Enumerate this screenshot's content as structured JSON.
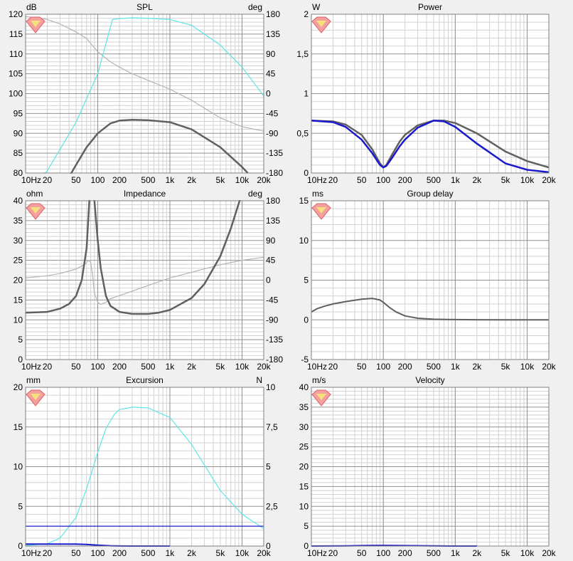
{
  "colors": {
    "dark": "#606060",
    "light": "#b4b4b4",
    "cyan": "#5ee6e6",
    "blue": "#1a1acc",
    "grid_major": "#909090",
    "grid_minor": "#d2d2d2"
  },
  "x_ticks": [
    {
      "v": 10,
      "l": "10Hz"
    },
    {
      "v": 20,
      "l": "20"
    },
    {
      "v": 50,
      "l": "50"
    },
    {
      "v": 100,
      "l": "100"
    },
    {
      "v": 200,
      "l": "200"
    },
    {
      "v": 500,
      "l": "500"
    },
    {
      "v": 1000,
      "l": "1k"
    },
    {
      "v": 2000,
      "l": "2k"
    },
    {
      "v": 5000,
      "l": "5k"
    },
    {
      "v": 10000,
      "l": "10k"
    },
    {
      "v": 20000,
      "l": "20k"
    }
  ],
  "chart_data": [
    {
      "type": "line",
      "title": "SPL",
      "xscale": "log",
      "xlim": [
        10,
        20000
      ],
      "ylabel": "dB",
      "ylim": [
        80,
        120
      ],
      "yticks": [
        {
          "v": 80,
          "l": "80"
        },
        {
          "v": 85,
          "l": "85"
        },
        {
          "v": 90,
          "l": "90"
        },
        {
          "v": 95,
          "l": "95"
        },
        {
          "v": 100,
          "l": "100"
        },
        {
          "v": 105,
          "l": "105"
        },
        {
          "v": 110,
          "l": "110"
        },
        {
          "v": 115,
          "l": "115"
        },
        {
          "v": 120,
          "l": "120"
        }
      ],
      "y2label": "deg",
      "y2lim": [
        -180,
        180
      ],
      "y2ticks": [
        {
          "v": -180,
          "l": "-180"
        },
        {
          "v": -135,
          "l": "-135"
        },
        {
          "v": -90,
          "l": "-90"
        },
        {
          "v": -45,
          "l": "-45"
        },
        {
          "v": 0,
          "l": "0"
        },
        {
          "v": 45,
          "l": "45"
        },
        {
          "v": 90,
          "l": "90"
        },
        {
          "v": 135,
          "l": "135"
        },
        {
          "v": 180,
          "l": "180"
        }
      ],
      "series": [
        {
          "color": "light",
          "axis": "y2",
          "x": [
            10,
            20,
            30,
            50,
            70,
            100,
            150,
            200,
            300,
            500,
            1000,
            2000,
            5000,
            10000,
            20000
          ],
          "y": [
            175,
            168,
            158,
            140,
            125,
            95,
            72,
            60,
            45,
            30,
            10,
            -15,
            -55,
            -75,
            -85
          ]
        },
        {
          "color": "cyan",
          "axis": "y2",
          "x": [
            15,
            20,
            50,
            100,
            160,
            200,
            300,
            500,
            1000,
            2000,
            5000,
            10000,
            20000
          ],
          "y": [
            -195,
            -175,
            -65,
            45,
            168,
            170,
            172,
            171,
            168,
            155,
            110,
            60,
            -5
          ]
        },
        {
          "color": "dark",
          "axis": "y",
          "width": 2.5,
          "x": [
            40,
            50,
            70,
            100,
            150,
            200,
            300,
            500,
            1000,
            2000,
            5000,
            10000,
            12000
          ],
          "y": [
            79,
            82,
            86.5,
            90,
            92.5,
            93.2,
            93.4,
            93.3,
            92.8,
            91,
            86.5,
            81.5,
            80
          ]
        }
      ]
    },
    {
      "type": "line",
      "title": "Power",
      "xscale": "log",
      "xlim": [
        10,
        20000
      ],
      "ylabel": "W",
      "ylim": [
        0,
        2
      ],
      "yticks": [
        {
          "v": 0,
          "l": "0"
        },
        {
          "v": 0.5,
          "l": "0,5"
        },
        {
          "v": 1,
          "l": "1"
        },
        {
          "v": 1.5,
          "l": "1,5"
        },
        {
          "v": 2,
          "l": "2"
        }
      ],
      "series": [
        {
          "color": "dark",
          "axis": "y",
          "width": 2.5,
          "x": [
            10,
            20,
            30,
            50,
            70,
            90,
            100,
            110,
            130,
            170,
            200,
            300,
            500,
            700,
            1000,
            2000,
            5000,
            10000,
            20000
          ],
          "y": [
            0.66,
            0.65,
            0.61,
            0.48,
            0.3,
            0.12,
            0.07,
            0.1,
            0.22,
            0.4,
            0.48,
            0.6,
            0.66,
            0.66,
            0.63,
            0.5,
            0.27,
            0.15,
            0.07
          ]
        },
        {
          "color": "blue",
          "axis": "y",
          "width": 2.5,
          "x": [
            10,
            20,
            30,
            50,
            70,
            90,
            100,
            110,
            130,
            170,
            200,
            300,
            500,
            700,
            1000,
            2000,
            5000,
            10000,
            20000
          ],
          "y": [
            0.66,
            0.64,
            0.58,
            0.42,
            0.25,
            0.1,
            0.07,
            0.09,
            0.18,
            0.34,
            0.42,
            0.57,
            0.66,
            0.65,
            0.58,
            0.37,
            0.12,
            0.04,
            0.01
          ]
        }
      ]
    },
    {
      "type": "line",
      "title": "Impedance",
      "xscale": "log",
      "xlim": [
        10,
        20000
      ],
      "ylabel": "ohm",
      "ylim": [
        0,
        40
      ],
      "yticks": [
        {
          "v": 0,
          "l": "0"
        },
        {
          "v": 5,
          "l": "5"
        },
        {
          "v": 10,
          "l": "10"
        },
        {
          "v": 15,
          "l": "15"
        },
        {
          "v": 20,
          "l": "20"
        },
        {
          "v": 25,
          "l": "25"
        },
        {
          "v": 30,
          "l": "30"
        },
        {
          "v": 35,
          "l": "35"
        },
        {
          "v": 40,
          "l": "40"
        }
      ],
      "y2label": "deg",
      "y2lim": [
        -180,
        180
      ],
      "y2ticks": [
        {
          "v": -180,
          "l": "-180"
        },
        {
          "v": -135,
          "l": "-135"
        },
        {
          "v": -90,
          "l": "-90"
        },
        {
          "v": -45,
          "l": "-45"
        },
        {
          "v": 0,
          "l": "0"
        },
        {
          "v": 45,
          "l": "45"
        },
        {
          "v": 90,
          "l": "90"
        },
        {
          "v": 135,
          "l": "135"
        },
        {
          "v": 180,
          "l": "180"
        }
      ],
      "series": [
        {
          "color": "light",
          "axis": "y2",
          "x": [
            10,
            20,
            30,
            50,
            65,
            75,
            80,
            85,
            90,
            100,
            110,
            130,
            150,
            200,
            300,
            500,
            1000,
            2000,
            5000,
            10000,
            20000
          ],
          "y": [
            5,
            10,
            15,
            25,
            35,
            45,
            40,
            10,
            -30,
            -50,
            -55,
            -50,
            -42,
            -35,
            -25,
            -12,
            5,
            18,
            35,
            45,
            52
          ]
        },
        {
          "color": "dark",
          "axis": "y",
          "width": 2.5,
          "x": [
            10,
            20,
            30,
            40,
            50,
            60,
            70,
            77,
            80,
            87,
            90,
            100,
            110,
            130,
            150,
            200,
            300,
            500,
            700,
            1000,
            2000,
            3000,
            5000,
            7000,
            10000,
            13000
          ],
          "y": [
            11.8,
            12,
            12.8,
            14,
            16,
            20,
            28,
            41,
            42,
            42,
            40,
            30,
            23,
            16,
            13.5,
            12,
            11.5,
            11.5,
            11.8,
            12.5,
            15.5,
            19,
            26,
            33,
            42,
            42
          ]
        }
      ]
    },
    {
      "type": "line",
      "title": "Group delay",
      "xscale": "log",
      "xlim": [
        10,
        20000
      ],
      "ylabel": "ms",
      "ylim": [
        -5,
        15
      ],
      "yticks": [
        {
          "v": -5,
          "l": "-5"
        },
        {
          "v": 0,
          "l": "0"
        },
        {
          "v": 5,
          "l": "5"
        },
        {
          "v": 10,
          "l": "10"
        },
        {
          "v": 15,
          "l": "15"
        }
      ],
      "series": [
        {
          "color": "dark",
          "axis": "y",
          "width": 2,
          "x": [
            10,
            12,
            15,
            20,
            30,
            50,
            70,
            90,
            100,
            120,
            150,
            200,
            300,
            500,
            1000,
            2000,
            5000,
            20000
          ],
          "y": [
            1,
            1.4,
            1.7,
            2,
            2.3,
            2.6,
            2.7,
            2.5,
            2.2,
            1.6,
            1,
            0.5,
            0.2,
            0.08,
            0.03,
            0.01,
            0,
            0
          ]
        }
      ]
    },
    {
      "type": "line",
      "title": "Excursion",
      "xscale": "log",
      "xlim": [
        10,
        20000
      ],
      "ylabel": "mm",
      "ylim": [
        0,
        20
      ],
      "yticks": [
        {
          "v": 0,
          "l": "0"
        },
        {
          "v": 5,
          "l": "5"
        },
        {
          "v": 10,
          "l": "10"
        },
        {
          "v": 15,
          "l": "15"
        },
        {
          "v": 20,
          "l": "20"
        }
      ],
      "y2label": "N",
      "y2lim": [
        0,
        10
      ],
      "y2ticks": [
        {
          "v": 0,
          "l": "0"
        },
        {
          "v": 2.5,
          "l": "2,5"
        },
        {
          "v": 5,
          "l": "5"
        },
        {
          "v": 7.5,
          "l": "7,5"
        },
        {
          "v": 10,
          "l": "10"
        }
      ],
      "series": [
        {
          "color": "cyan",
          "axis": "y2",
          "x": [
            10,
            20,
            30,
            50,
            70,
            100,
            130,
            170,
            200,
            300,
            500,
            1000,
            2000,
            5000,
            10000,
            20000
          ],
          "y": [
            0.03,
            0.15,
            0.5,
            1.8,
            3.6,
            5.9,
            7.4,
            8.3,
            8.6,
            8.75,
            8.7,
            8.1,
            6.4,
            3.5,
            2,
            1.1
          ]
        },
        {
          "color": "blue",
          "axis": "y2",
          "width": 1.2,
          "x": [
            10,
            20000
          ],
          "y": [
            1.25,
            1.25
          ]
        },
        {
          "color": "blue",
          "axis": "y",
          "width": 2,
          "x": [
            10,
            30,
            50,
            70,
            100,
            150,
            200,
            300,
            1000
          ],
          "y": [
            0.25,
            0.25,
            0.24,
            0.2,
            0.12,
            0.04,
            0.01,
            0,
            0
          ]
        }
      ]
    },
    {
      "type": "line",
      "title": "Velocity",
      "xscale": "log",
      "xlim": [
        10,
        20000
      ],
      "ylabel": "m/s",
      "ylim": [
        0,
        40
      ],
      "yticks": [
        {
          "v": 0,
          "l": "0"
        },
        {
          "v": 5,
          "l": "5"
        },
        {
          "v": 10,
          "l": "10"
        },
        {
          "v": 15,
          "l": "15"
        },
        {
          "v": 20,
          "l": "20"
        },
        {
          "v": 25,
          "l": "25"
        },
        {
          "v": 30,
          "l": "30"
        },
        {
          "v": 35,
          "l": "35"
        },
        {
          "v": 40,
          "l": "40"
        }
      ],
      "series": [
        {
          "color": "blue",
          "axis": "y",
          "width": 2,
          "x": [
            10,
            30,
            60,
            100,
            200,
            500,
            1000,
            2000
          ],
          "y": [
            0,
            0.05,
            0.12,
            0.16,
            0.1,
            0.03,
            0,
            0
          ]
        }
      ]
    }
  ]
}
